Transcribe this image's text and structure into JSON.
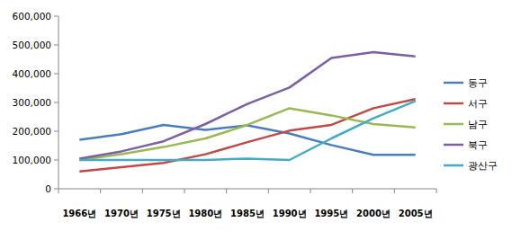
{
  "chart_data": {
    "type": "line",
    "categories": [
      "1966년",
      "1970년",
      "1975년",
      "1980년",
      "1985년",
      "1990년",
      "1995년",
      "2000년",
      "2005년"
    ],
    "series": [
      {
        "name": "동구",
        "color": "#4a7ebb",
        "values": [
          170000,
          190000,
          222000,
          205000,
          220000,
          192000,
          152000,
          118000,
          118000
        ]
      },
      {
        "name": "서구",
        "color": "#be4b48",
        "values": [
          60000,
          75000,
          90000,
          120000,
          162000,
          202000,
          222000,
          280000,
          312000
        ]
      },
      {
        "name": "남구",
        "color": "#98b954",
        "values": [
          100000,
          120000,
          145000,
          175000,
          222000,
          280000,
          255000,
          225000,
          213000
        ]
      },
      {
        "name": "북구",
        "color": "#7d60a0",
        "values": [
          105000,
          130000,
          165000,
          225000,
          295000,
          352000,
          455000,
          475000,
          460000
        ]
      },
      {
        "name": "광산구",
        "color": "#46aac5",
        "values": [
          100000,
          100000,
          100000,
          100000,
          105000,
          100000,
          175000,
          245000,
          305000
        ]
      }
    ],
    "ylim": [
      0,
      600000
    ],
    "yticks": [
      0,
      {
        "value": 100000,
        "label": "100,000"
      },
      {
        "value": 200000,
        "label": "200,000"
      },
      {
        "value": 300000,
        "label": "300,000"
      },
      {
        "value": 400000,
        "label": "400,000"
      },
      {
        "value": 500000,
        "label": "500,000"
      },
      {
        "value": 600000,
        "label": "600,000"
      }
    ],
    "grid": false,
    "legend": "right"
  }
}
